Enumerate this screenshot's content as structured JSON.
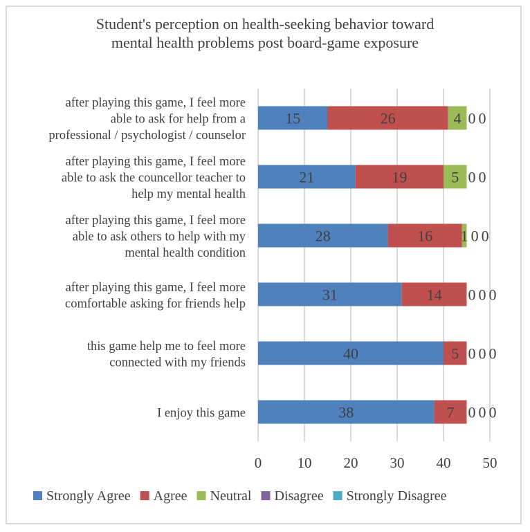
{
  "chart_data": {
    "type": "bar",
    "orientation": "horizontal",
    "stacked": true,
    "title": [
      "Student's perception on health-seeking behavior toward",
      "mental health problems post board-game exposure"
    ],
    "categories": [
      [
        "after playing this game, I feel more",
        "able to ask for help from a",
        "professional / psychologist / counselor"
      ],
      [
        "after playing this game, I feel more",
        "able to ask the councellor teacher to",
        "help my mental health"
      ],
      [
        "after playing this game, I feel more",
        "able to ask others to help with my",
        "mental health condition"
      ],
      [
        "after playing this game, I feel more",
        "comfortable asking for friends help"
      ],
      [
        "this game help me to feel more",
        "connected with my friends"
      ],
      [
        "I enjoy this game"
      ]
    ],
    "series": [
      {
        "name": "Strongly Agree",
        "color": "#4f81bd",
        "values": [
          15,
          21,
          28,
          31,
          40,
          38
        ]
      },
      {
        "name": "Agree",
        "color": "#c0504d",
        "values": [
          26,
          19,
          16,
          14,
          5,
          7
        ]
      },
      {
        "name": "Neutral",
        "color": "#9bbb59",
        "values": [
          4,
          5,
          1,
          0,
          0,
          0
        ]
      },
      {
        "name": "Disagree",
        "color": "#8064a2",
        "values": [
          0,
          0,
          0,
          0,
          0,
          0
        ]
      },
      {
        "name": "Strongly Disagree",
        "color": "#4bacc6",
        "values": [
          0,
          0,
          0,
          0,
          0,
          0
        ]
      }
    ],
    "xlim": [
      0,
      50
    ],
    "xticks": [
      "0",
      "10",
      "20",
      "30",
      "40",
      "50"
    ],
    "grid": true,
    "legend": "bottom"
  }
}
